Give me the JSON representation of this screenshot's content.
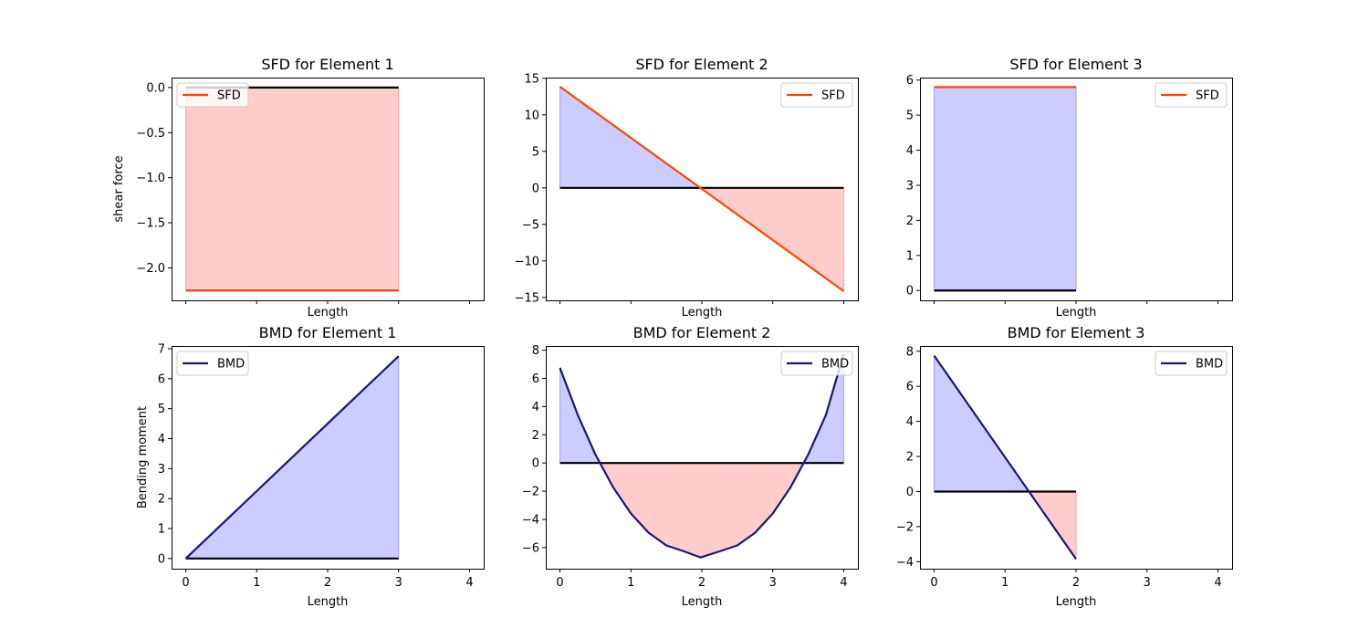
{
  "chart_data": [
    {
      "type": "area",
      "title": "SFD for Element 1",
      "xlabel": "Length",
      "ylabel": "shear force",
      "xlim": [
        -0.2,
        4.2
      ],
      "ylim": [
        -2.36,
        0.11
      ],
      "xticks": [
        0,
        1,
        2,
        3,
        4
      ],
      "show_xtick_labels": false,
      "yticks": [
        0.0,
        -0.5,
        -1.0,
        -1.5,
        -2.0
      ],
      "ytick_labels": [
        "0.0",
        "−0.5",
        "−1.0",
        "−1.5",
        "−2.0"
      ],
      "baseline": {
        "x": [
          0,
          3
        ],
        "y": 0
      },
      "series": [
        {
          "name": "SFD",
          "color": "#ff4500",
          "x": [
            0,
            3
          ],
          "y": [
            -2.25,
            -2.25
          ]
        }
      ],
      "legend": "upper left"
    },
    {
      "type": "area",
      "title": "SFD for Element 2",
      "xlabel": "Length",
      "ylabel": "",
      "xlim": [
        -0.2,
        4.2
      ],
      "ylim": [
        -15.4,
        15.1
      ],
      "xticks": [
        0,
        1,
        2,
        3,
        4
      ],
      "show_xtick_labels": false,
      "yticks": [
        15,
        10,
        5,
        0,
        -5,
        -10,
        -15
      ],
      "ytick_labels": [
        "15",
        "10",
        "5",
        "0",
        "−5",
        "−10",
        "−15"
      ],
      "baseline": {
        "x": [
          0,
          4
        ],
        "y": 0
      },
      "series": [
        {
          "name": "SFD",
          "color": "#ff4500",
          "x": [
            0,
            4
          ],
          "y": [
            13.85,
            -14.15
          ]
        }
      ],
      "legend": "upper right"
    },
    {
      "type": "area",
      "title": "SFD for Element 3",
      "xlabel": "Length",
      "ylabel": "",
      "xlim": [
        -0.2,
        4.2
      ],
      "ylim": [
        -0.28,
        6.07
      ],
      "xticks": [
        0,
        1,
        2,
        3,
        4
      ],
      "show_xtick_labels": false,
      "yticks": [
        0,
        1,
        2,
        3,
        4,
        5,
        6
      ],
      "ytick_labels": [
        "0",
        "1",
        "2",
        "3",
        "4",
        "5",
        "6"
      ],
      "baseline": {
        "x": [
          0,
          2
        ],
        "y": 0
      },
      "series": [
        {
          "name": "SFD",
          "color": "#ff4500",
          "x": [
            0,
            2
          ],
          "y": [
            5.8,
            5.8
          ]
        }
      ],
      "legend": "upper right"
    },
    {
      "type": "area",
      "title": "BMD for Element 1",
      "xlabel": "Length",
      "ylabel": "Bending moment",
      "xlim": [
        -0.2,
        4.2
      ],
      "ylim": [
        -0.34,
        7.09
      ],
      "xticks": [
        0,
        1,
        2,
        3,
        4
      ],
      "show_xtick_labels": true,
      "yticks": [
        0,
        1,
        2,
        3,
        4,
        5,
        6,
        7
      ],
      "ytick_labels": [
        "0",
        "1",
        "2",
        "3",
        "4",
        "5",
        "6",
        "7"
      ],
      "baseline": {
        "x": [
          0,
          3
        ],
        "y": 0
      },
      "series": [
        {
          "name": "BMD",
          "color": "#191970",
          "x": [
            0,
            3
          ],
          "y": [
            0,
            6.75
          ]
        }
      ],
      "legend": "upper left"
    },
    {
      "type": "area",
      "title": "BMD for Element 2",
      "xlabel": "Length",
      "ylabel": "",
      "xlim": [
        -0.2,
        4.2
      ],
      "ylim": [
        -7.5,
        8.3
      ],
      "xticks": [
        0,
        1,
        2,
        3,
        4
      ],
      "show_xtick_labels": true,
      "yticks": [
        8,
        6,
        4,
        2,
        0,
        -2,
        -4,
        -6
      ],
      "ytick_labels": [
        "8",
        "6",
        "4",
        "2",
        "0",
        "−2",
        "−4",
        "−6"
      ],
      "baseline": {
        "x": [
          0,
          4
        ],
        "y": 0
      },
      "series": [
        {
          "name": "BMD",
          "color": "#191970",
          "x": [
            0,
            0.25,
            0.5,
            0.75,
            1.0,
            1.25,
            1.5,
            1.75,
            1.98,
            2.25,
            2.5,
            2.75,
            3.0,
            3.25,
            3.5,
            3.75,
            4.0
          ],
          "y": [
            6.75,
            3.42,
            0.6,
            -1.73,
            -3.58,
            -4.95,
            -5.85,
            -6.27,
            -6.7,
            -6.27,
            -5.85,
            -4.95,
            -3.58,
            -1.73,
            0.6,
            3.42,
            7.75
          ]
        }
      ],
      "legend": "upper right"
    },
    {
      "type": "area",
      "title": "BMD for Element 3",
      "xlabel": "Length",
      "ylabel": "",
      "xlim": [
        -0.2,
        4.2
      ],
      "ylim": [
        -4.4,
        8.3
      ],
      "xticks": [
        0,
        1,
        2,
        3,
        4
      ],
      "show_xtick_labels": true,
      "yticks": [
        8,
        6,
        4,
        2,
        0,
        -2,
        -4
      ],
      "ytick_labels": [
        "8",
        "6",
        "4",
        "2",
        "0",
        "−2",
        "−4"
      ],
      "baseline": {
        "x": [
          0,
          2
        ],
        "y": 0
      },
      "series": [
        {
          "name": "BMD",
          "color": "#191970",
          "x": [
            0,
            2
          ],
          "y": [
            7.75,
            -3.85
          ]
        }
      ],
      "legend": "upper right"
    }
  ],
  "colors": {
    "positive_fill": "#ccccff",
    "positive_edge": "#aaaaff",
    "negative_fill": "#ffcccc",
    "negative_edge": "#ffaaaa",
    "baseline": "#000000"
  }
}
